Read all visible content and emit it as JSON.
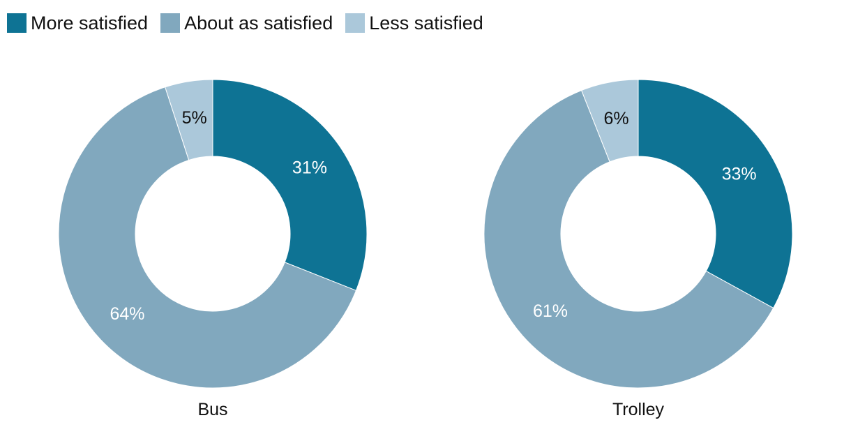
{
  "legend": [
    {
      "label": "More satisfied",
      "color": "#0e7394"
    },
    {
      "label": "About as satisfied",
      "color": "#81a8be"
    },
    {
      "label": "Less satisfied",
      "color": "#abc8da"
    }
  ],
  "chart_data": [
    {
      "type": "pie",
      "variant": "donut",
      "title": "",
      "label": "Bus",
      "slices": [
        {
          "name": "More satisfied",
          "value": 31,
          "label": "31%",
          "color": "#0e7394",
          "label_color": "#ffffff"
        },
        {
          "name": "About as satisfied",
          "value": 64,
          "label": "64%",
          "color": "#81a8be",
          "label_color": "#ffffff"
        },
        {
          "name": "Less satisfied",
          "value": 5,
          "label": "5%",
          "color": "#abc8da",
          "label_color": "#111111"
        }
      ]
    },
    {
      "type": "pie",
      "variant": "donut",
      "title": "",
      "label": "Trolley",
      "slices": [
        {
          "name": "More satisfied",
          "value": 33,
          "label": "33%",
          "color": "#0e7394",
          "label_color": "#ffffff"
        },
        {
          "name": "About as satisfied",
          "value": 61,
          "label": "61%",
          "color": "#81a8be",
          "label_color": "#ffffff"
        },
        {
          "name": "Less satisfied",
          "value": 6,
          "label": "6%",
          "color": "#abc8da",
          "label_color": "#111111"
        }
      ]
    }
  ]
}
